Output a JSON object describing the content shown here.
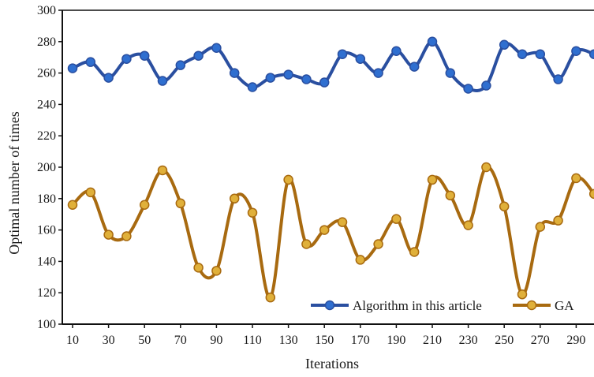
{
  "chart_data": {
    "type": "line",
    "xlabel": "Iterations",
    "ylabel": "Optimal number of times",
    "ylim": [
      100,
      300
    ],
    "yticks": [
      100,
      120,
      140,
      160,
      180,
      200,
      220,
      240,
      260,
      280,
      300
    ],
    "xticks": [
      10,
      30,
      50,
      70,
      90,
      110,
      130,
      150,
      170,
      190,
      210,
      230,
      250,
      270,
      290
    ],
    "x": [
      10,
      20,
      30,
      40,
      50,
      60,
      70,
      80,
      90,
      100,
      110,
      120,
      130,
      140,
      150,
      160,
      170,
      180,
      190,
      200,
      210,
      220,
      230,
      240,
      250,
      260,
      270,
      280,
      290,
      300
    ],
    "legend_position": "bottom-right",
    "grid": false,
    "series": [
      {
        "name": "Algorithm in this article",
        "color": "#2a4fa0",
        "marker_color": "#2f6fd0",
        "values": [
          263,
          267,
          257,
          269,
          271,
          255,
          265,
          271,
          276,
          260,
          251,
          257,
          259,
          256,
          254,
          272,
          269,
          260,
          274,
          264,
          280,
          260,
          250,
          252,
          278,
          272,
          272,
          256,
          274,
          272
        ]
      },
      {
        "name": "GA",
        "color": "#a86a10",
        "marker_color": "#e0b03a",
        "values": [
          176,
          184,
          157,
          156,
          176,
          198,
          177,
          136,
          134,
          180,
          171,
          117,
          192,
          151,
          160,
          165,
          141,
          151,
          167,
          146,
          192,
          182,
          163,
          200,
          175,
          119,
          162,
          166,
          193,
          183
        ]
      }
    ]
  }
}
